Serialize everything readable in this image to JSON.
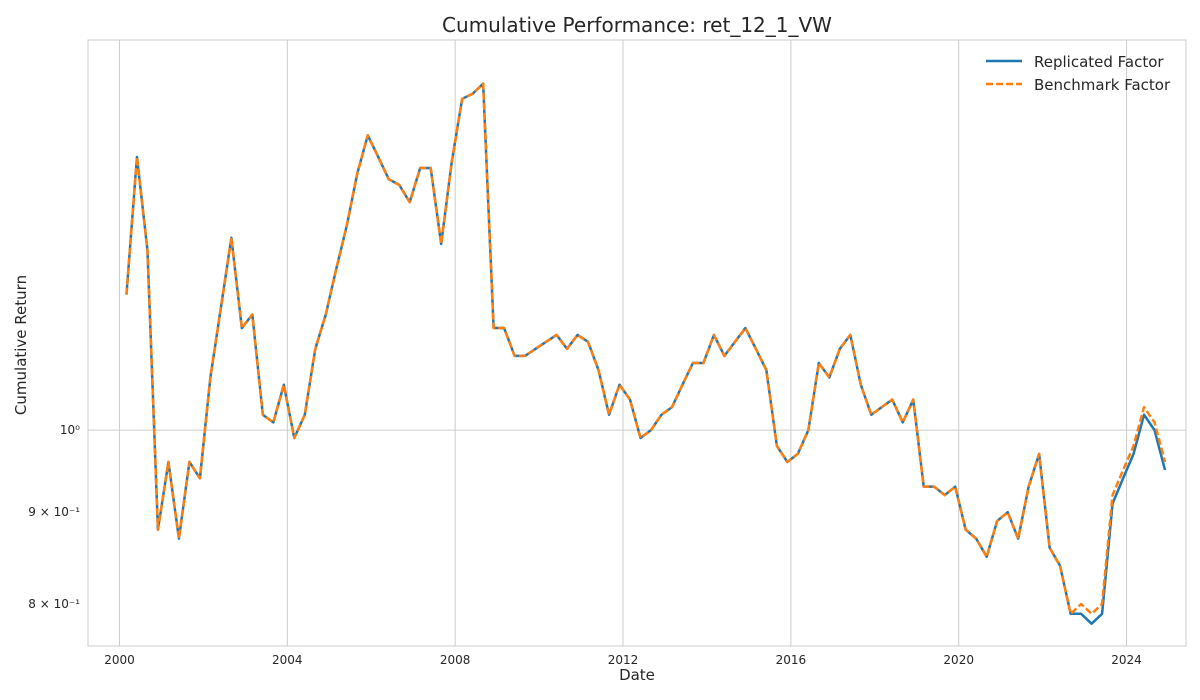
{
  "chart_data": {
    "type": "line",
    "title": "Cumulative Performance: ret_12_1_VW",
    "xlabel": "Date",
    "ylabel": "Cumulative Return",
    "yscale": "log",
    "xlim": [
      "1999-04-01",
      "2025-06-01"
    ],
    "ylim": [
      0.758,
      1.65
    ],
    "x_ticks": [
      "2000",
      "2004",
      "2008",
      "2012",
      "2016",
      "2020",
      "2024"
    ],
    "y_ticks": [
      {
        "value": 0.8,
        "label": "8 × 10⁻¹"
      },
      {
        "value": 0.9,
        "label": "9 × 10⁻¹"
      },
      {
        "value": 1.0,
        "label": "10⁰"
      }
    ],
    "grid": true,
    "legend": {
      "position": "top-right"
    },
    "colors": {
      "replicated": "#1f77b4",
      "benchmark": "#ff7f0e",
      "grid": "#cccccc",
      "frame": "#cccccc"
    },
    "x": [
      "2000-03",
      "2000-06",
      "2000-09",
      "2000-12",
      "2001-03",
      "2001-06",
      "2001-09",
      "2001-12",
      "2002-03",
      "2002-06",
      "2002-09",
      "2002-12",
      "2003-03",
      "2003-06",
      "2003-09",
      "2003-12",
      "2004-03",
      "2004-06",
      "2004-09",
      "2004-12",
      "2005-03",
      "2005-06",
      "2005-09",
      "2005-12",
      "2006-03",
      "2006-06",
      "2006-09",
      "2006-12",
      "2007-03",
      "2007-06",
      "2007-09",
      "2007-12",
      "2008-03",
      "2008-06",
      "2008-09",
      "2008-12",
      "2009-03",
      "2009-06",
      "2009-09",
      "2009-12",
      "2010-03",
      "2010-06",
      "2010-09",
      "2010-12",
      "2011-03",
      "2011-06",
      "2011-09",
      "2011-12",
      "2012-03",
      "2012-06",
      "2012-09",
      "2012-12",
      "2013-03",
      "2013-06",
      "2013-09",
      "2013-12",
      "2014-03",
      "2014-06",
      "2014-09",
      "2014-12",
      "2015-03",
      "2015-06",
      "2015-09",
      "2015-12",
      "2016-03",
      "2016-06",
      "2016-09",
      "2016-12",
      "2017-03",
      "2017-06",
      "2017-09",
      "2017-12",
      "2018-03",
      "2018-06",
      "2018-09",
      "2018-12",
      "2019-03",
      "2019-06",
      "2019-09",
      "2019-12",
      "2020-03",
      "2020-06",
      "2020-09",
      "2020-12",
      "2021-03",
      "2021-06",
      "2021-09",
      "2021-12",
      "2022-03",
      "2022-06",
      "2022-09",
      "2022-12",
      "2023-03",
      "2023-06",
      "2023-09",
      "2023-12",
      "2024-03",
      "2024-06",
      "2024-09",
      "2024-12"
    ],
    "series": [
      {
        "name": "Replicated Factor",
        "style": "solid",
        "values": [
          1.19,
          1.42,
          1.26,
          0.88,
          0.96,
          0.87,
          0.96,
          0.94,
          1.07,
          1.17,
          1.28,
          1.14,
          1.16,
          1.02,
          1.01,
          1.06,
          0.99,
          1.02,
          1.11,
          1.16,
          1.23,
          1.3,
          1.39,
          1.46,
          1.42,
          1.38,
          1.37,
          1.34,
          1.4,
          1.4,
          1.27,
          1.41,
          1.53,
          1.54,
          1.56,
          1.14,
          1.14,
          1.1,
          1.1,
          1.11,
          1.12,
          1.13,
          1.11,
          1.13,
          1.12,
          1.08,
          1.02,
          1.06,
          1.04,
          0.99,
          1.0,
          1.02,
          1.03,
          1.06,
          1.09,
          1.09,
          1.13,
          1.1,
          1.12,
          1.14,
          1.11,
          1.08,
          0.98,
          0.96,
          0.97,
          1.0,
          1.09,
          1.07,
          1.11,
          1.13,
          1.06,
          1.02,
          1.03,
          1.04,
          1.01,
          1.04,
          0.93,
          0.93,
          0.92,
          0.93,
          0.88,
          0.87,
          0.85,
          0.89,
          0.9,
          0.87,
          0.93,
          0.97,
          0.86,
          0.84,
          0.79,
          0.79,
          0.78,
          0.79,
          0.91,
          0.94,
          0.97,
          1.02,
          1.0,
          0.95
        ]
      },
      {
        "name": "Benchmark Factor",
        "style": "dashed",
        "values": [
          1.19,
          1.42,
          1.26,
          0.88,
          0.96,
          0.87,
          0.96,
          0.94,
          1.07,
          1.17,
          1.28,
          1.14,
          1.16,
          1.02,
          1.01,
          1.06,
          0.99,
          1.02,
          1.11,
          1.16,
          1.23,
          1.3,
          1.39,
          1.46,
          1.42,
          1.38,
          1.37,
          1.34,
          1.4,
          1.4,
          1.27,
          1.41,
          1.53,
          1.54,
          1.56,
          1.14,
          1.14,
          1.1,
          1.1,
          1.11,
          1.12,
          1.13,
          1.11,
          1.13,
          1.12,
          1.08,
          1.02,
          1.06,
          1.04,
          0.99,
          1.0,
          1.02,
          1.03,
          1.06,
          1.09,
          1.09,
          1.13,
          1.1,
          1.12,
          1.14,
          1.11,
          1.08,
          0.98,
          0.96,
          0.97,
          1.0,
          1.09,
          1.07,
          1.11,
          1.13,
          1.06,
          1.02,
          1.03,
          1.04,
          1.01,
          1.04,
          0.93,
          0.93,
          0.92,
          0.93,
          0.88,
          0.87,
          0.85,
          0.89,
          0.9,
          0.87,
          0.93,
          0.97,
          0.86,
          0.84,
          0.79,
          0.8,
          0.79,
          0.8,
          0.92,
          0.95,
          0.98,
          1.03,
          1.01,
          0.96
        ]
      }
    ]
  }
}
